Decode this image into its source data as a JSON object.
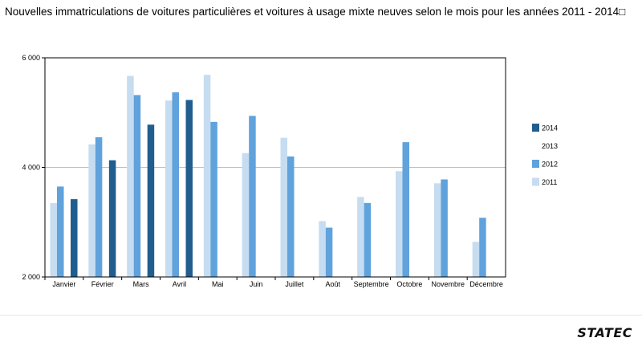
{
  "header": {
    "title": "Nouvelles immatriculations de voitures particulières et voitures à usage mixte neuves selon le mois pour les années 2011 - 2014□"
  },
  "branding": {
    "logo_text": "STATEC"
  },
  "chart_data": {
    "type": "bar",
    "title": "Nouvelles immatriculations de voitures particulières et voitures à usage mixte neuves selon le mois pour les années 2011 - 2014",
    "xlabel": "",
    "ylabel": "",
    "ylim": [
      2000,
      6000
    ],
    "yticks": [
      2000,
      4000,
      6000
    ],
    "ytick_labels": [
      "2 000",
      "4 000",
      "6 000"
    ],
    "grid": true,
    "legend_position": "right",
    "categories": [
      "Janvier",
      "Février",
      "Mars",
      "Avril",
      "Mai",
      "Juin",
      "Juillet",
      "Août",
      "Septembre",
      "Octobre",
      "Novembre",
      "Décembre"
    ],
    "series": [
      {
        "name": "2011",
        "color": "#c6dcf0",
        "values": [
          3350,
          4420,
          5670,
          5220,
          5690,
          4260,
          4540,
          3020,
          3460,
          3930,
          3710,
          2640
        ]
      },
      {
        "name": "2012",
        "color": "#5fa2dc",
        "values": [
          3650,
          4550,
          5320,
          5370,
          4830,
          4940,
          4200,
          2900,
          3350,
          4460,
          3780,
          3080
        ]
      },
      {
        "name": "2013",
        "color": "#ffffff",
        "values": [
          null,
          null,
          null,
          null,
          null,
          null,
          null,
          null,
          null,
          null,
          null,
          null
        ]
      },
      {
        "name": "2014",
        "color": "#1f5e8e",
        "values": [
          3420,
          4130,
          4780,
          5230,
          null,
          null,
          null,
          null,
          null,
          null,
          null,
          null
        ]
      }
    ],
    "legend_order": [
      "2014",
      "2013",
      "2012",
      "2011"
    ]
  }
}
